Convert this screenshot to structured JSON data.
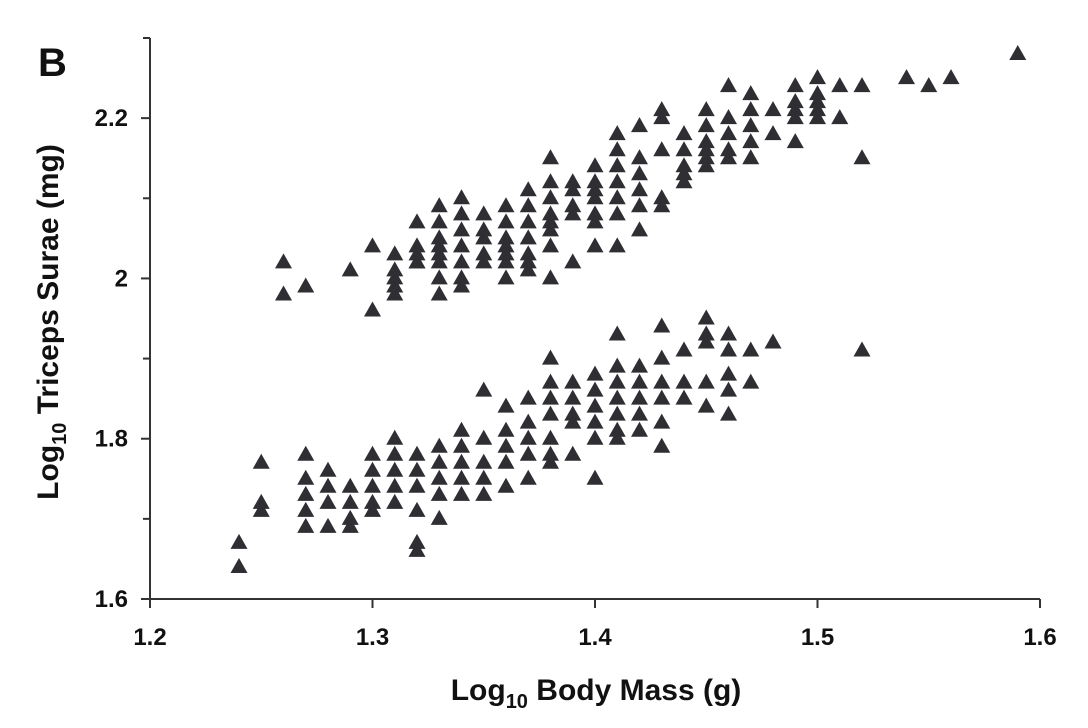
{
  "chart_data": {
    "type": "scatter",
    "panel_label": "B",
    "xlabel": {
      "base": "Log",
      "sub": "10",
      "rest": " Body Mass (g)"
    },
    "ylabel": {
      "base": "Log",
      "sub": "10",
      "rest": " Triceps Surae (mg)"
    },
    "xlim": [
      1.2,
      1.6
    ],
    "ylim": [
      1.6,
      2.3
    ],
    "x_ticks": [
      1.2,
      1.3,
      1.4,
      1.5,
      1.6
    ],
    "x_tick_labels": [
      "1.2",
      "1.3",
      "1.4",
      "1.5",
      "1.6"
    ],
    "y_major_ticks": [
      1.6,
      1.8,
      2.0,
      2.2
    ],
    "y_tick_labels": [
      "1.6",
      "1.8",
      "2",
      "2.2"
    ],
    "y_minor_ticks": [
      1.7,
      1.9,
      2.1,
      2.3
    ],
    "grid": false,
    "marker": "triangle",
    "marker_color": "#2e2e33",
    "series": [
      {
        "points": [
          [
            1.26,
            2.02
          ],
          [
            1.26,
            1.98
          ],
          [
            1.27,
            1.99
          ],
          [
            1.29,
            2.01
          ],
          [
            1.3,
            1.96
          ],
          [
            1.3,
            2.04
          ],
          [
            1.31,
            2.03
          ],
          [
            1.31,
            2.01
          ],
          [
            1.31,
            2.0
          ],
          [
            1.31,
            1.99
          ],
          [
            1.31,
            1.98
          ],
          [
            1.32,
            2.07
          ],
          [
            1.32,
            2.04
          ],
          [
            1.32,
            2.03
          ],
          [
            1.32,
            2.02
          ],
          [
            1.32,
            2.02
          ],
          [
            1.33,
            2.09
          ],
          [
            1.33,
            2.07
          ],
          [
            1.33,
            2.05
          ],
          [
            1.33,
            2.04
          ],
          [
            1.33,
            2.03
          ],
          [
            1.33,
            2.02
          ],
          [
            1.33,
            2.0
          ],
          [
            1.33,
            1.98
          ],
          [
            1.34,
            2.1
          ],
          [
            1.34,
            2.08
          ],
          [
            1.34,
            2.06
          ],
          [
            1.34,
            2.04
          ],
          [
            1.34,
            2.02
          ],
          [
            1.34,
            2.0
          ],
          [
            1.34,
            1.99
          ],
          [
            1.35,
            2.08
          ],
          [
            1.35,
            2.06
          ],
          [
            1.35,
            2.05
          ],
          [
            1.35,
            2.03
          ],
          [
            1.35,
            2.02
          ],
          [
            1.36,
            2.09
          ],
          [
            1.36,
            2.07
          ],
          [
            1.36,
            2.05
          ],
          [
            1.36,
            2.04
          ],
          [
            1.36,
            2.03
          ],
          [
            1.36,
            2.02
          ],
          [
            1.36,
            2.0
          ],
          [
            1.37,
            2.11
          ],
          [
            1.37,
            2.09
          ],
          [
            1.37,
            2.07
          ],
          [
            1.37,
            2.05
          ],
          [
            1.37,
            2.03
          ],
          [
            1.37,
            2.02
          ],
          [
            1.37,
            2.01
          ],
          [
            1.38,
            2.15
          ],
          [
            1.38,
            2.12
          ],
          [
            1.38,
            2.1
          ],
          [
            1.38,
            2.08
          ],
          [
            1.38,
            2.07
          ],
          [
            1.38,
            2.06
          ],
          [
            1.38,
            2.04
          ],
          [
            1.38,
            2.0
          ],
          [
            1.39,
            2.12
          ],
          [
            1.39,
            2.11
          ],
          [
            1.39,
            2.09
          ],
          [
            1.39,
            2.08
          ],
          [
            1.39,
            2.02
          ],
          [
            1.4,
            2.14
          ],
          [
            1.4,
            2.12
          ],
          [
            1.4,
            2.11
          ],
          [
            1.4,
            2.1
          ],
          [
            1.4,
            2.08
          ],
          [
            1.4,
            2.07
          ],
          [
            1.4,
            2.04
          ],
          [
            1.41,
            2.18
          ],
          [
            1.41,
            2.16
          ],
          [
            1.41,
            2.14
          ],
          [
            1.41,
            2.12
          ],
          [
            1.41,
            2.1
          ],
          [
            1.41,
            2.08
          ],
          [
            1.41,
            2.04
          ],
          [
            1.42,
            2.19
          ],
          [
            1.42,
            2.15
          ],
          [
            1.42,
            2.13
          ],
          [
            1.42,
            2.11
          ],
          [
            1.42,
            2.09
          ],
          [
            1.42,
            2.06
          ],
          [
            1.43,
            2.21
          ],
          [
            1.43,
            2.2
          ],
          [
            1.43,
            2.16
          ],
          [
            1.43,
            2.1
          ],
          [
            1.43,
            2.09
          ],
          [
            1.44,
            2.18
          ],
          [
            1.44,
            2.16
          ],
          [
            1.44,
            2.14
          ],
          [
            1.44,
            2.13
          ],
          [
            1.44,
            2.12
          ],
          [
            1.45,
            2.21
          ],
          [
            1.45,
            2.19
          ],
          [
            1.45,
            2.17
          ],
          [
            1.45,
            2.16
          ],
          [
            1.45,
            2.15
          ],
          [
            1.45,
            2.14
          ],
          [
            1.46,
            2.24
          ],
          [
            1.46,
            2.2
          ],
          [
            1.46,
            2.18
          ],
          [
            1.46,
            2.16
          ],
          [
            1.46,
            2.15
          ],
          [
            1.47,
            2.23
          ],
          [
            1.47,
            2.21
          ],
          [
            1.47,
            2.19
          ],
          [
            1.47,
            2.17
          ],
          [
            1.47,
            2.15
          ],
          [
            1.48,
            2.21
          ],
          [
            1.48,
            2.18
          ],
          [
            1.49,
            2.24
          ],
          [
            1.49,
            2.22
          ],
          [
            1.49,
            2.21
          ],
          [
            1.49,
            2.2
          ],
          [
            1.49,
            2.17
          ],
          [
            1.5,
            2.25
          ],
          [
            1.5,
            2.23
          ],
          [
            1.5,
            2.22
          ],
          [
            1.5,
            2.21
          ],
          [
            1.5,
            2.2
          ],
          [
            1.51,
            2.24
          ],
          [
            1.51,
            2.2
          ],
          [
            1.52,
            2.24
          ],
          [
            1.52,
            2.15
          ],
          [
            1.54,
            2.25
          ],
          [
            1.55,
            2.24
          ],
          [
            1.56,
            2.25
          ],
          [
            1.59,
            2.28
          ],
          [
            1.24,
            1.67
          ],
          [
            1.24,
            1.64
          ],
          [
            1.25,
            1.77
          ],
          [
            1.25,
            1.72
          ],
          [
            1.25,
            1.71
          ],
          [
            1.27,
            1.78
          ],
          [
            1.27,
            1.75
          ],
          [
            1.27,
            1.73
          ],
          [
            1.27,
            1.71
          ],
          [
            1.27,
            1.69
          ],
          [
            1.28,
            1.76
          ],
          [
            1.28,
            1.74
          ],
          [
            1.28,
            1.72
          ],
          [
            1.28,
            1.69
          ],
          [
            1.29,
            1.74
          ],
          [
            1.29,
            1.72
          ],
          [
            1.29,
            1.7
          ],
          [
            1.29,
            1.69
          ],
          [
            1.3,
            1.78
          ],
          [
            1.3,
            1.76
          ],
          [
            1.3,
            1.74
          ],
          [
            1.3,
            1.72
          ],
          [
            1.3,
            1.71
          ],
          [
            1.31,
            1.8
          ],
          [
            1.31,
            1.78
          ],
          [
            1.31,
            1.76
          ],
          [
            1.31,
            1.74
          ],
          [
            1.31,
            1.72
          ],
          [
            1.32,
            1.78
          ],
          [
            1.32,
            1.76
          ],
          [
            1.32,
            1.74
          ],
          [
            1.32,
            1.71
          ],
          [
            1.32,
            1.67
          ],
          [
            1.32,
            1.66
          ],
          [
            1.33,
            1.79
          ],
          [
            1.33,
            1.77
          ],
          [
            1.33,
            1.75
          ],
          [
            1.33,
            1.73
          ],
          [
            1.33,
            1.7
          ],
          [
            1.34,
            1.81
          ],
          [
            1.34,
            1.79
          ],
          [
            1.34,
            1.77
          ],
          [
            1.34,
            1.75
          ],
          [
            1.34,
            1.73
          ],
          [
            1.35,
            1.86
          ],
          [
            1.35,
            1.8
          ],
          [
            1.35,
            1.77
          ],
          [
            1.35,
            1.75
          ],
          [
            1.35,
            1.73
          ],
          [
            1.36,
            1.84
          ],
          [
            1.36,
            1.81
          ],
          [
            1.36,
            1.79
          ],
          [
            1.36,
            1.77
          ],
          [
            1.36,
            1.74
          ],
          [
            1.37,
            1.85
          ],
          [
            1.37,
            1.82
          ],
          [
            1.37,
            1.8
          ],
          [
            1.37,
            1.78
          ],
          [
            1.37,
            1.75
          ],
          [
            1.38,
            1.9
          ],
          [
            1.38,
            1.87
          ],
          [
            1.38,
            1.85
          ],
          [
            1.38,
            1.83
          ],
          [
            1.38,
            1.8
          ],
          [
            1.38,
            1.78
          ],
          [
            1.38,
            1.77
          ],
          [
            1.39,
            1.87
          ],
          [
            1.39,
            1.85
          ],
          [
            1.39,
            1.83
          ],
          [
            1.39,
            1.82
          ],
          [
            1.39,
            1.78
          ],
          [
            1.4,
            1.88
          ],
          [
            1.4,
            1.86
          ],
          [
            1.4,
            1.84
          ],
          [
            1.4,
            1.82
          ],
          [
            1.4,
            1.8
          ],
          [
            1.4,
            1.75
          ],
          [
            1.41,
            1.93
          ],
          [
            1.41,
            1.89
          ],
          [
            1.41,
            1.87
          ],
          [
            1.41,
            1.85
          ],
          [
            1.41,
            1.83
          ],
          [
            1.41,
            1.81
          ],
          [
            1.41,
            1.8
          ],
          [
            1.42,
            1.89
          ],
          [
            1.42,
            1.87
          ],
          [
            1.42,
            1.85
          ],
          [
            1.42,
            1.83
          ],
          [
            1.42,
            1.81
          ],
          [
            1.43,
            1.94
          ],
          [
            1.43,
            1.9
          ],
          [
            1.43,
            1.87
          ],
          [
            1.43,
            1.85
          ],
          [
            1.43,
            1.82
          ],
          [
            1.43,
            1.79
          ],
          [
            1.44,
            1.91
          ],
          [
            1.44,
            1.87
          ],
          [
            1.44,
            1.85
          ],
          [
            1.45,
            1.95
          ],
          [
            1.45,
            1.93
          ],
          [
            1.45,
            1.92
          ],
          [
            1.45,
            1.87
          ],
          [
            1.45,
            1.84
          ],
          [
            1.46,
            1.93
          ],
          [
            1.46,
            1.91
          ],
          [
            1.46,
            1.88
          ],
          [
            1.46,
            1.86
          ],
          [
            1.46,
            1.83
          ],
          [
            1.47,
            1.91
          ],
          [
            1.47,
            1.87
          ],
          [
            1.48,
            1.92
          ],
          [
            1.52,
            1.91
          ]
        ]
      }
    ]
  }
}
